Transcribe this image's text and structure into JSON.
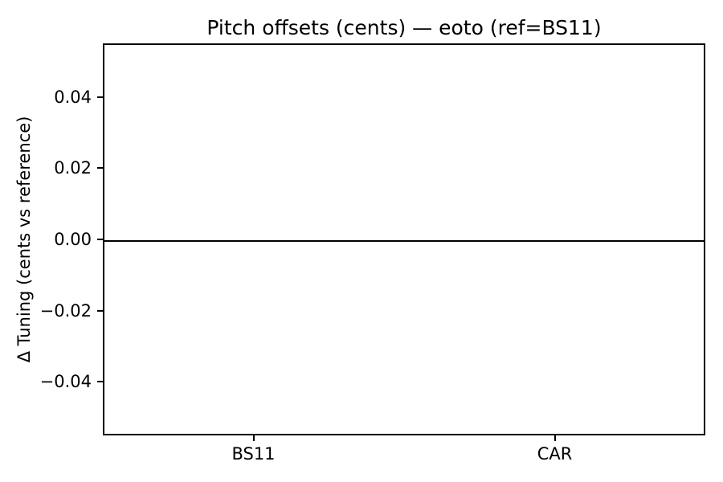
{
  "figure": {
    "background": "#ffffff",
    "text_color": "#000000",
    "spine_color": "#000000"
  },
  "chart_data": {
    "type": "bar",
    "title": "Pitch offsets (cents) — eoto (ref=BS11)",
    "ylabel": "Δ Tuning (cents vs reference)",
    "categories": [
      "BS11",
      "CAR"
    ],
    "values": [
      0.0,
      0.0
    ],
    "bar_color": "#1f77b4",
    "ylim": [
      -0.055,
      0.055
    ],
    "yticks": [
      0.04,
      0.02,
      0.0,
      -0.02,
      -0.04
    ],
    "ytick_labels": [
      "0.04",
      "0.02",
      "0.00",
      "−0.02",
      "−0.04"
    ],
    "xtick_positions": [
      0.25,
      0.75
    ],
    "grid": false,
    "legend": false,
    "zero_line": {
      "y": 0.0,
      "color": "#000000"
    }
  }
}
